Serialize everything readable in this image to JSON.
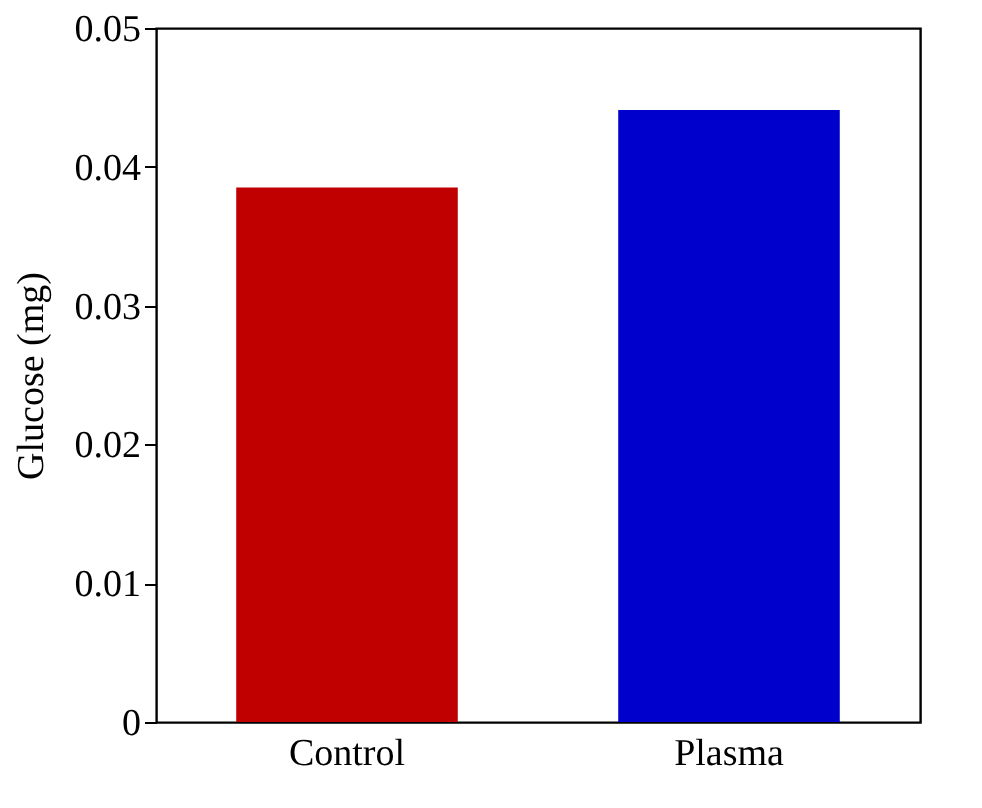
{
  "chart_data": {
    "type": "bar",
    "ylabel": "Glucose (mg)",
    "categories": [
      "Control",
      "Plasma"
    ],
    "values": [
      0.0385,
      0.0441
    ],
    "colors": [
      "#c00000",
      "#0000cc"
    ],
    "ylim": [
      0,
      0.05
    ],
    "yticks": [
      0,
      0.01,
      0.02,
      0.03,
      0.04,
      0.05
    ],
    "grid": false
  }
}
